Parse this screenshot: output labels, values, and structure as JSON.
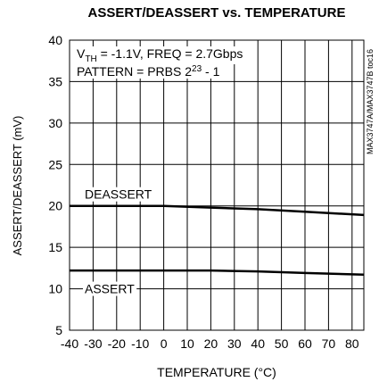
{
  "chart_data": {
    "type": "line",
    "title": "ASSERT/DEASSERT vs. TEMPERATURE",
    "xlabel": "TEMPERATURE (°C)",
    "ylabel": "ASSERT/DEASSERT (mV)",
    "side_note": "MAX3747A/MAX3747B toc16",
    "annotations": [
      [
        "V",
        "TH",
        " = -1.1V, FREQ = 2.7Gbps"
      ],
      [
        "PATTERN = PRBS 2",
        "23",
        " - 1"
      ]
    ],
    "x": [
      -40,
      -20,
      0,
      20,
      40,
      60,
      85
    ],
    "series": [
      {
        "name": "DEASSERT",
        "color": "#000000",
        "values": [
          20.0,
          20.0,
          20.0,
          19.8,
          19.6,
          19.3,
          18.9
        ]
      },
      {
        "name": "ASSERT",
        "color": "#000000",
        "values": [
          12.2,
          12.2,
          12.2,
          12.2,
          12.1,
          11.9,
          11.7
        ]
      }
    ],
    "xlim": [
      -40,
      85
    ],
    "xticks": [
      -40,
      -30,
      -20,
      -10,
      0,
      10,
      20,
      30,
      40,
      50,
      60,
      70,
      80
    ],
    "ylim": [
      5,
      40
    ],
    "yticks": [
      5,
      10,
      15,
      20,
      25,
      30,
      35,
      40
    ],
    "grid": true
  }
}
